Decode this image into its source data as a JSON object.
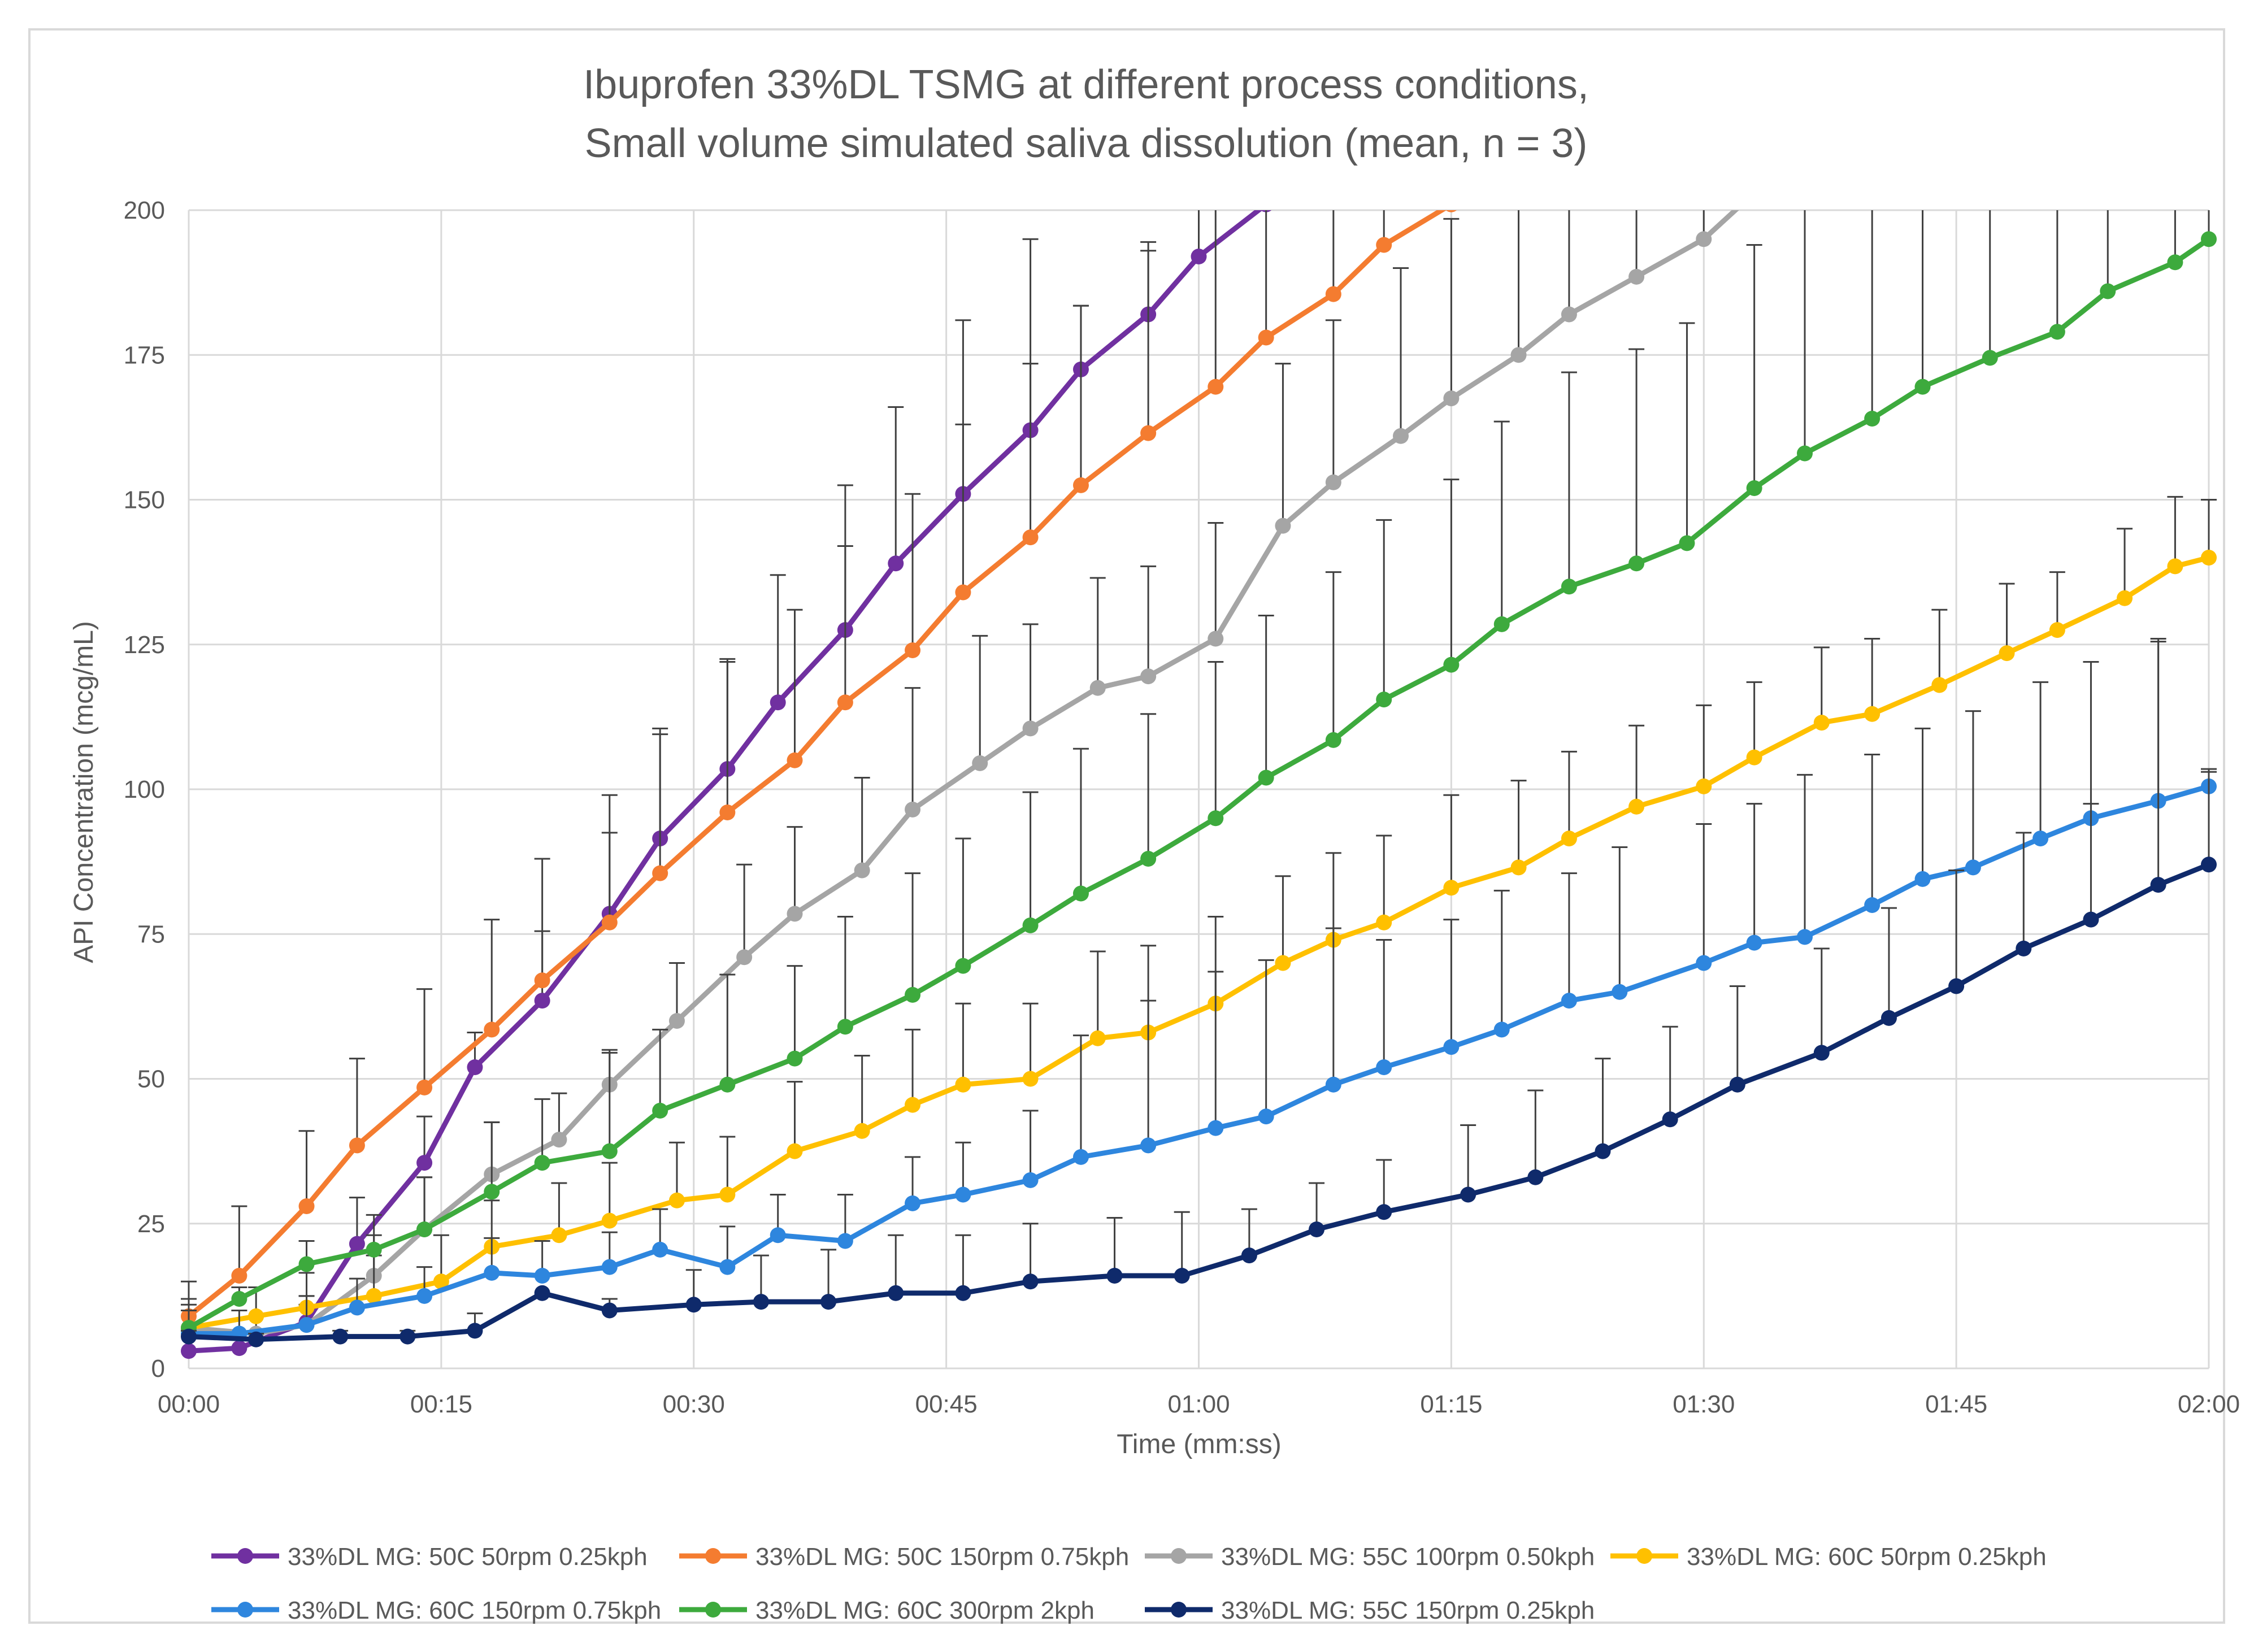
{
  "chart_data": {
    "type": "line",
    "title": "Ibuprofen 33%DL TSMG at different process conditions,",
    "subtitle": "Small volume simulated saliva dissolution (mean, n = 3)",
    "xlabel": "Time (mm:ss)",
    "ylabel": "API Concentration (mcg/mL)",
    "xlim": [
      0,
      120
    ],
    "ylim": [
      0,
      200
    ],
    "x_ticks": [
      0,
      15,
      30,
      45,
      60,
      75,
      90,
      105,
      120
    ],
    "x_tick_labels": [
      "00:00",
      "00:15",
      "00:30",
      "00:45",
      "01:00",
      "01:15",
      "01:30",
      "01:45",
      "02:00"
    ],
    "y_ticks": [
      0,
      25,
      50,
      75,
      100,
      125,
      150,
      175,
      200
    ],
    "y_tick_labels": [
      "0",
      "25",
      "50",
      "75",
      "100",
      "125",
      "150",
      "175",
      "200"
    ],
    "grid": true,
    "legend_position": "bottom",
    "series": [
      {
        "name": "33%DL MG: 50C 50rpm 0.25kph",
        "color": "#7030a0",
        "x": [
          0,
          3,
          7,
          10,
          14,
          17,
          21,
          25,
          28,
          32,
          35,
          39,
          42,
          46,
          50,
          53,
          57,
          60,
          64
        ],
        "y": [
          3,
          3.5,
          8,
          21.5,
          35.5,
          52,
          63.5,
          78.5,
          91.5,
          103.5,
          115,
          127.5,
          139,
          151,
          162,
          172.5,
          182,
          192,
          201
        ],
        "err": [
          0,
          0,
          3,
          8,
          8,
          6,
          12,
          14,
          19,
          19,
          22,
          25,
          27,
          30,
          33,
          11,
          11,
          20,
          20
        ]
      },
      {
        "name": "33%DL MG: 50C 150rpm 0.75kph",
        "color": "#f47c30",
        "x": [
          0,
          3,
          7,
          10,
          14,
          18,
          21,
          25,
          28,
          32,
          36,
          39,
          43,
          46,
          50,
          53,
          57,
          61,
          64,
          68,
          71,
          75
        ],
        "y": [
          9,
          16,
          28,
          38.5,
          48.5,
          58.5,
          67,
          77,
          85.5,
          96,
          105,
          115,
          124,
          134,
          143.5,
          152.5,
          161.5,
          169.5,
          178,
          185.5,
          194,
          201
        ],
        "err": [
          6,
          12,
          13,
          15,
          17,
          19,
          21,
          22,
          24,
          26,
          26,
          27,
          27,
          29,
          30,
          31,
          33,
          34,
          36,
          38,
          40,
          45
        ]
      },
      {
        "name": "33%DL MG: 55C 100rpm 0.50kph",
        "color": "#a5a5a5",
        "x": [
          0,
          4,
          7,
          11,
          14,
          18,
          22,
          25,
          29,
          33,
          36,
          40,
          43,
          47,
          50,
          54,
          57,
          61,
          65,
          68,
          72,
          75,
          79,
          82,
          86,
          90,
          93
        ],
        "y": [
          7,
          6,
          7.5,
          16,
          24,
          33.5,
          39.5,
          49,
          60,
          71,
          78.5,
          86,
          96.5,
          104.5,
          110.5,
          117.5,
          119.5,
          126,
          145.5,
          153,
          161,
          167.5,
          175,
          182,
          188.5,
          195,
          203
        ],
        "err": [
          3,
          3,
          5,
          7,
          9,
          9,
          8,
          6,
          10,
          16,
          15,
          16,
          21,
          22,
          18,
          19,
          19,
          20,
          28,
          28,
          29,
          31,
          32,
          34,
          35,
          36,
          38
        ]
      },
      {
        "name": "33%DL MG: 60C 50rpm 0.25kph",
        "color": "#ffc000",
        "x": [
          0,
          4,
          7,
          11,
          15,
          18,
          22,
          25,
          29,
          32,
          36,
          40,
          43,
          46,
          50,
          54,
          57,
          61,
          65,
          68,
          71,
          75,
          79,
          82,
          86,
          90,
          93,
          97,
          100,
          104,
          108,
          111,
          115,
          118,
          120
        ],
        "y": [
          7,
          9,
          10.5,
          12.5,
          15,
          21,
          23,
          25.5,
          29,
          30,
          37.5,
          41,
          45.5,
          49,
          50,
          57,
          58,
          63,
          70,
          74,
          77,
          83,
          86.5,
          91.5,
          97,
          100.5,
          105.5,
          111.5,
          113,
          118,
          123.5,
          127.5,
          133,
          138.5,
          140
        ],
        "err": [
          5,
          5,
          6,
          7,
          8,
          8,
          9,
          10,
          10,
          10,
          12,
          13,
          13,
          14,
          13,
          15,
          15,
          15,
          15,
          15,
          15,
          16,
          15,
          15,
          14,
          14,
          13,
          13,
          13,
          13,
          12,
          10,
          12,
          12,
          10
        ]
      },
      {
        "name": "33%DL MG: 60C 150rpm 0.75kph",
        "color": "#2e86de",
        "x": [
          0,
          3,
          7,
          10,
          14,
          18,
          21,
          25,
          28,
          32,
          35,
          39,
          43,
          46,
          50,
          53,
          57,
          61,
          64,
          68,
          71,
          75,
          78,
          82,
          85,
          90,
          93,
          96,
          100,
          103,
          106,
          110,
          113,
          117,
          120
        ],
        "y": [
          6,
          6,
          7.5,
          10.5,
          12.5,
          16.5,
          16,
          17.5,
          20.5,
          17.5,
          23,
          22,
          28.5,
          30,
          32.5,
          36.5,
          38.5,
          41.5,
          43.5,
          49,
          52,
          55.5,
          58.5,
          63.5,
          65,
          70,
          73.5,
          74.5,
          80,
          84.5,
          86.5,
          91.5,
          95,
          98,
          100.5
        ],
        "err": [
          4,
          4,
          5,
          5,
          5,
          6,
          6,
          6,
          7,
          7,
          7,
          8,
          8,
          9,
          12,
          21,
          25,
          27,
          27,
          27,
          22,
          22,
          24,
          22,
          25,
          24,
          24,
          28,
          26,
          26,
          27,
          27,
          27,
          28,
          3
        ]
      },
      {
        "name": "33%DL MG: 60C 300rpm 2kph",
        "color": "#3daa3d",
        "x": [
          0,
          3,
          7,
          11,
          14,
          18,
          21,
          25,
          28,
          32,
          36,
          39,
          43,
          46,
          50,
          53,
          57,
          61,
          64,
          68,
          71,
          75,
          78,
          82,
          86,
          89,
          93,
          96,
          100,
          103,
          107,
          111,
          114,
          118,
          120
        ],
        "y": [
          7,
          12,
          18,
          20.5,
          24,
          30.5,
          35.5,
          37.5,
          44.5,
          49,
          53.5,
          59,
          64.5,
          69.5,
          76.5,
          82,
          88,
          95,
          102,
          108.5,
          115.5,
          121.5,
          128.5,
          135,
          139,
          142.5,
          152,
          158,
          164,
          169.5,
          174.5,
          179,
          186,
          191,
          195
        ],
        "err": [
          4,
          2,
          4,
          6,
          9,
          12,
          11,
          17,
          14,
          19,
          16,
          19,
          21,
          22,
          23,
          25,
          25,
          27,
          28,
          29,
          31,
          32,
          35,
          37,
          37,
          38,
          42,
          45,
          47,
          49,
          50,
          52,
          54,
          55,
          55
        ]
      },
      {
        "name": "33%DL MG: 55C 150rpm 0.25kph",
        "color": "#0f2a6b",
        "x": [
          0,
          4,
          9,
          13,
          17,
          21,
          25,
          30,
          34,
          38,
          42,
          46,
          50,
          55,
          59,
          63,
          67,
          71,
          76,
          80,
          84,
          88,
          92,
          97,
          101,
          105,
          109,
          113,
          117,
          120
        ],
        "y": [
          5.5,
          5,
          5.5,
          5.5,
          6.5,
          13,
          10,
          11,
          11.5,
          11.5,
          13,
          13,
          15,
          16,
          16,
          19.5,
          24,
          27,
          30,
          33,
          37.5,
          43,
          49,
          54.5,
          60.5,
          66,
          72.5,
          77.5,
          83.5,
          87
        ],
        "err": [
          1,
          1,
          1,
          1,
          3,
          0,
          2,
          6,
          8,
          9,
          10,
          10,
          10,
          10,
          11,
          8,
          8,
          9,
          12,
          15,
          16,
          16,
          17,
          18,
          19,
          20,
          20,
          20,
          42,
          16
        ]
      }
    ]
  }
}
